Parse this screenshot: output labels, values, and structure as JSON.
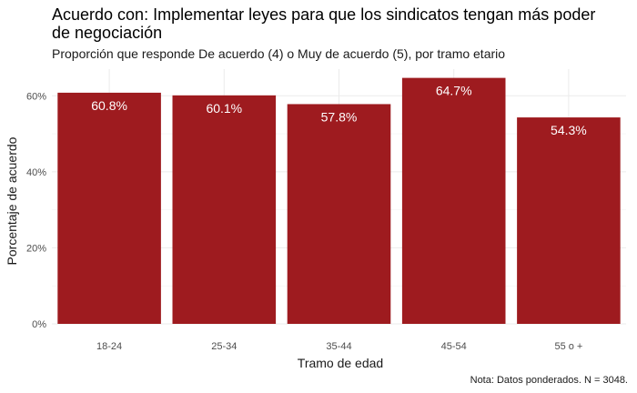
{
  "chart_data": {
    "type": "bar",
    "title": "Acuerdo con: Implementar leyes para que los sindicatos tengan más poder de negociación",
    "subtitle": "Proporción que responde De acuerdo (4) o Muy de acuerdo (5), por tramo etario",
    "xlabel": "Tramo de edad",
    "ylabel": "Porcentaje de acuerdo",
    "caption": "Nota: Datos ponderados. N = 3048.",
    "categories": [
      "18-24",
      "25-34",
      "35-44",
      "45-54",
      "55 o +"
    ],
    "values": [
      60.8,
      60.1,
      57.8,
      64.7,
      54.3
    ],
    "value_labels": [
      "60.8%",
      "60.1%",
      "57.8%",
      "64.7%",
      "54.3%"
    ],
    "ylim": [
      0,
      67
    ],
    "yticks": [
      0,
      20,
      40,
      60
    ],
    "ytick_labels": [
      "0%",
      "20%",
      "40%",
      "60%"
    ],
    "bar_color": "#9E1B1F",
    "grid": true,
    "legend": "none"
  }
}
